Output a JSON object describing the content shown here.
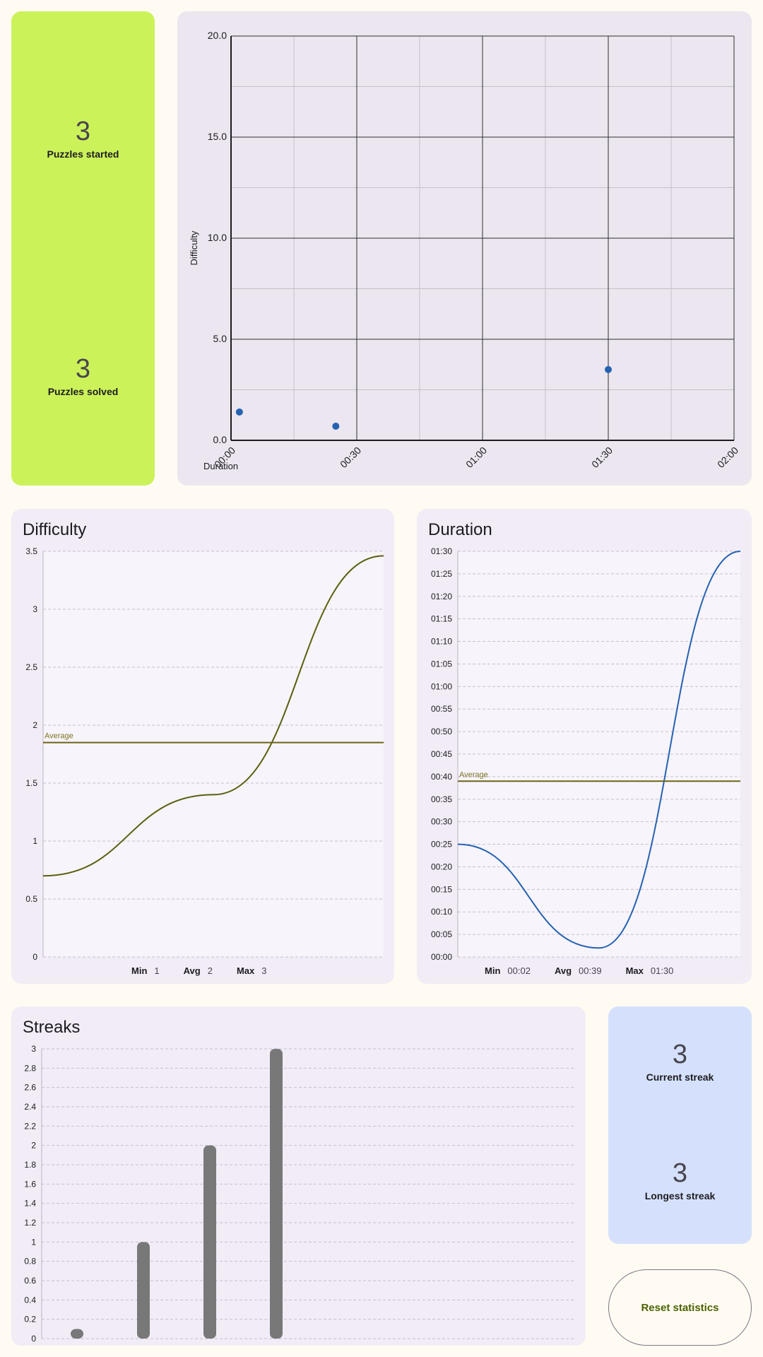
{
  "stats": {
    "puzzles_started_value": "3",
    "puzzles_started_label": "Puzzles started",
    "puzzles_solved_value": "3",
    "puzzles_solved_label": "Puzzles solved"
  },
  "streak_stats": {
    "current_value": "3",
    "current_label": "Current streak",
    "longest_value": "3",
    "longest_label": "Longest streak"
  },
  "reset_button_label": "Reset statistics",
  "difficulty_summary": {
    "min_label": "Min",
    "min": "1",
    "avg_label": "Avg",
    "avg": "2",
    "max_label": "Max",
    "max": "3"
  },
  "duration_summary": {
    "min_label": "Min",
    "min": "00:02",
    "avg_label": "Avg",
    "avg": "00:39",
    "max_label": "Max",
    "max": "01:30"
  },
  "colors": {
    "stat_card": "#ccf25a",
    "streak_card": "#d5e1fc",
    "scatter_point": "#2562b0",
    "difficulty_line": "#5b5f0e",
    "duration_line": "#2562b0",
    "average_line": "#6b6418",
    "bar": "#787878"
  },
  "chart_data": [
    {
      "type": "scatter",
      "xlabel": "Duration",
      "ylabel": "Difficulty",
      "x_ticks": [
        "00:00",
        "00:30",
        "01:00",
        "01:30",
        "02:00"
      ],
      "y_ticks": [
        "0.0",
        "5.0",
        "10.0",
        "15.0",
        "20.0"
      ],
      "xlim": [
        0,
        120
      ],
      "ylim": [
        0,
        20
      ],
      "grid": true,
      "points": [
        {
          "x": 2,
          "y": 1.4
        },
        {
          "x": 25,
          "y": 0.7
        },
        {
          "x": 90,
          "y": 3.5
        }
      ]
    },
    {
      "type": "line",
      "title": "Difficulty",
      "ylim": [
        0,
        3.5
      ],
      "y_ticks": [
        "0",
        "0.5",
        "1",
        "1.5",
        "2",
        "2.5",
        "3",
        "3.5"
      ],
      "x": [
        0,
        1,
        2
      ],
      "values": [
        0.7,
        1.4,
        3.46
      ],
      "average": 1.85,
      "average_label": "Average",
      "grid": true
    },
    {
      "type": "line",
      "title": "Duration",
      "ylim": [
        0,
        90
      ],
      "y_ticks": [
        "00:00",
        "00:05",
        "00:10",
        "00:15",
        "00:20",
        "00:25",
        "00:30",
        "00:35",
        "00:40",
        "00:45",
        "00:50",
        "00:55",
        "01:00",
        "01:05",
        "01:10",
        "01:15",
        "01:20",
        "01:25",
        "01:30"
      ],
      "x": [
        0,
        1,
        2
      ],
      "values": [
        25,
        2,
        90
      ],
      "average": 39,
      "average_label": "Average",
      "grid": true
    },
    {
      "type": "bar",
      "title": "Streaks",
      "ylim": [
        0,
        3
      ],
      "y_ticks": [
        "0",
        "0.2",
        "0.4",
        "0.6",
        "0.8",
        "1",
        "1.2",
        "1.4",
        "1.6",
        "1.8",
        "2",
        "2.2",
        "2.4",
        "2.6",
        "2.8",
        "3"
      ],
      "categories": [
        "",
        "",
        "",
        ""
      ],
      "values": [
        0.1,
        1,
        2,
        3
      ],
      "grid": true
    }
  ]
}
